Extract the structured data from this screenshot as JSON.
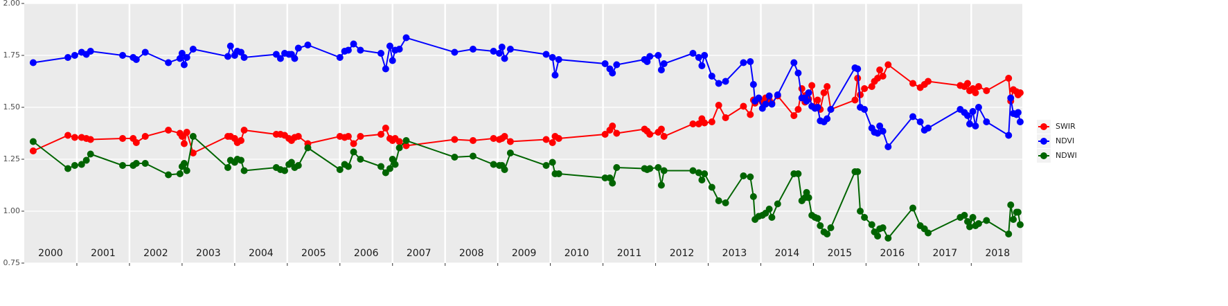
{
  "chart_data": {
    "type": "line",
    "xlim": [
      2000,
      2018.97
    ],
    "ylim": [
      0.75,
      2.0
    ],
    "yticks": [
      {
        "value": 0.75,
        "label": "0.75"
      },
      {
        "value": 1.0,
        "label": "1.00"
      },
      {
        "value": 1.25,
        "label": "1.25"
      },
      {
        "value": 1.5,
        "label": "1.50"
      },
      {
        "value": 1.75,
        "label": "1.75"
      },
      {
        "value": 2.0,
        "label": "2.00"
      }
    ],
    "x_gridlines": [
      2001,
      2002,
      2003,
      2004,
      2005,
      2006,
      2007,
      2008,
      2009,
      2010,
      2011,
      2012,
      2013,
      2014,
      2015,
      2016,
      2017,
      2018
    ],
    "year_labels": [
      {
        "value": 2000.5,
        "label": "2000"
      },
      {
        "value": 2001.5,
        "label": "2001"
      },
      {
        "value": 2002.5,
        "label": "2002"
      },
      {
        "value": 2003.5,
        "label": "2003"
      },
      {
        "value": 2004.5,
        "label": "2004"
      },
      {
        "value": 2005.5,
        "label": "2005"
      },
      {
        "value": 2006.5,
        "label": "2006"
      },
      {
        "value": 2007.5,
        "label": "2007"
      },
      {
        "value": 2008.5,
        "label": "2008"
      },
      {
        "value": 2009.5,
        "label": "2009"
      },
      {
        "value": 2010.5,
        "label": "2010"
      },
      {
        "value": 2011.5,
        "label": "2011"
      },
      {
        "value": 2012.5,
        "label": "2012"
      },
      {
        "value": 2013.5,
        "label": "2013"
      },
      {
        "value": 2014.5,
        "label": "2014"
      },
      {
        "value": 2015.5,
        "label": "2015"
      },
      {
        "value": 2016.5,
        "label": "2016"
      },
      {
        "value": 2017.5,
        "label": "2017"
      },
      {
        "value": 2018.5,
        "label": "2018"
      }
    ],
    "grid": true,
    "legend": "right",
    "x": [
      2000.17,
      2000.83,
      2000.96,
      2001.09,
      2001.18,
      2001.26,
      2001.87,
      2002.07,
      2002.13,
      2002.3,
      2002.74,
      2002.96,
      2003.0,
      2003.04,
      2003.09,
      2003.21,
      2003.87,
      2003.92,
      2004.0,
      2004.05,
      2004.12,
      2004.18,
      2004.79,
      2004.87,
      2004.95,
      2005.03,
      2005.08,
      2005.14,
      2005.21,
      2005.39,
      2006.0,
      2006.09,
      2006.16,
      2006.26,
      2006.39,
      2006.78,
      2006.87,
      2006.95,
      2007.0,
      2007.05,
      2007.13,
      2007.26,
      2008.18,
      2008.53,
      2008.92,
      2009.03,
      2009.08,
      2009.13,
      2009.24,
      2009.92,
      2010.04,
      2010.09,
      2010.16,
      2011.04,
      2011.13,
      2011.18,
      2011.26,
      2011.79,
      2011.84,
      2011.89,
      2012.05,
      2012.11,
      2012.16,
      2012.71,
      2012.82,
      2012.88,
      2012.93,
      2013.07,
      2013.2,
      2013.33,
      2013.67,
      2013.8,
      2013.86,
      2013.89,
      2013.96,
      2014.03,
      2014.09,
      2014.16,
      2014.21,
      2014.32,
      2014.63,
      2014.71,
      2014.78,
      2014.84,
      2014.87,
      2014.91,
      2014.97,
      2015.03,
      2015.08,
      2015.13,
      2015.2,
      2015.26,
      2015.33,
      2015.79,
      2015.84,
      2015.89,
      2015.97,
      2016.11,
      2016.16,
      2016.22,
      2016.26,
      2016.32,
      2016.42,
      2016.89,
      2017.03,
      2017.11,
      2017.18,
      2017.79,
      2017.87,
      2017.93,
      2017.97,
      2018.03,
      2018.08,
      2018.14,
      2018.29,
      2018.71,
      2018.75,
      2018.8,
      2018.86,
      2018.89,
      2018.93
    ],
    "series": [
      {
        "name": "SWIR",
        "color": "#ff0000",
        "values": [
          1.29,
          1.365,
          1.355,
          1.355,
          1.35,
          1.345,
          1.35,
          1.35,
          1.33,
          1.36,
          1.39,
          1.375,
          1.36,
          1.325,
          1.38,
          1.28,
          1.36,
          1.36,
          1.35,
          1.33,
          1.34,
          1.39,
          1.37,
          1.37,
          1.365,
          1.35,
          1.34,
          1.355,
          1.36,
          1.325,
          1.36,
          1.355,
          1.36,
          1.325,
          1.36,
          1.37,
          1.4,
          1.35,
          1.34,
          1.35,
          1.335,
          1.315,
          1.345,
          1.34,
          1.35,
          1.345,
          1.35,
          1.36,
          1.335,
          1.345,
          1.33,
          1.36,
          1.35,
          1.37,
          1.39,
          1.41,
          1.375,
          1.395,
          1.385,
          1.37,
          1.38,
          1.395,
          1.36,
          1.42,
          1.42,
          1.445,
          1.425,
          1.43,
          1.51,
          1.45,
          1.505,
          1.465,
          1.535,
          1.52,
          1.54,
          1.525,
          1.545,
          1.535,
          1.52,
          1.555,
          1.46,
          1.49,
          1.59,
          1.525,
          1.56,
          1.54,
          1.605,
          1.5,
          1.535,
          1.49,
          1.57,
          1.6,
          1.49,
          1.535,
          1.64,
          1.56,
          1.59,
          1.6,
          1.625,
          1.64,
          1.68,
          1.65,
          1.705,
          1.615,
          1.595,
          1.61,
          1.625,
          1.605,
          1.6,
          1.615,
          1.58,
          1.59,
          1.57,
          1.6,
          1.58,
          1.64,
          1.53,
          1.585,
          1.575,
          1.56,
          1.57
        ]
      },
      {
        "name": "NDVI",
        "color": "#0000ff",
        "values": [
          1.715,
          1.74,
          1.75,
          1.765,
          1.755,
          1.77,
          1.75,
          1.74,
          1.73,
          1.765,
          1.715,
          1.735,
          1.76,
          1.705,
          1.74,
          1.78,
          1.745,
          1.795,
          1.75,
          1.77,
          1.765,
          1.74,
          1.755,
          1.735,
          1.76,
          1.755,
          1.755,
          1.735,
          1.785,
          1.8,
          1.74,
          1.77,
          1.775,
          1.805,
          1.775,
          1.76,
          1.685,
          1.795,
          1.725,
          1.775,
          1.78,
          1.835,
          1.765,
          1.78,
          1.77,
          1.76,
          1.79,
          1.735,
          1.78,
          1.755,
          1.74,
          1.655,
          1.73,
          1.71,
          1.685,
          1.665,
          1.705,
          1.73,
          1.72,
          1.745,
          1.75,
          1.68,
          1.71,
          1.76,
          1.74,
          1.7,
          1.75,
          1.65,
          1.615,
          1.625,
          1.715,
          1.72,
          1.61,
          1.53,
          1.545,
          1.495,
          1.515,
          1.555,
          1.515,
          1.56,
          1.715,
          1.665,
          1.545,
          1.545,
          1.53,
          1.57,
          1.505,
          1.495,
          1.5,
          1.435,
          1.43,
          1.445,
          1.49,
          1.69,
          1.685,
          1.5,
          1.49,
          1.4,
          1.38,
          1.375,
          1.41,
          1.385,
          1.31,
          1.455,
          1.43,
          1.39,
          1.4,
          1.49,
          1.475,
          1.46,
          1.42,
          1.48,
          1.41,
          1.5,
          1.43,
          1.365,
          1.545,
          1.47,
          1.465,
          1.475,
          1.43
        ]
      },
      {
        "name": "NDWI",
        "color": "#006400",
        "values": [
          1.335,
          1.205,
          1.22,
          1.225,
          1.245,
          1.275,
          1.22,
          1.22,
          1.23,
          1.23,
          1.175,
          1.18,
          1.215,
          1.23,
          1.195,
          1.36,
          1.21,
          1.245,
          1.235,
          1.25,
          1.245,
          1.195,
          1.21,
          1.2,
          1.195,
          1.225,
          1.235,
          1.21,
          1.22,
          1.305,
          1.2,
          1.225,
          1.215,
          1.285,
          1.25,
          1.215,
          1.185,
          1.205,
          1.25,
          1.225,
          1.305,
          1.34,
          1.26,
          1.265,
          1.225,
          1.22,
          1.22,
          1.2,
          1.28,
          1.22,
          1.235,
          1.18,
          1.18,
          1.16,
          1.16,
          1.135,
          1.21,
          1.205,
          1.2,
          1.205,
          1.21,
          1.125,
          1.195,
          1.195,
          1.185,
          1.15,
          1.18,
          1.115,
          1.05,
          1.04,
          1.17,
          1.165,
          1.07,
          0.96,
          0.975,
          0.98,
          0.99,
          1.01,
          0.97,
          1.035,
          1.18,
          1.18,
          1.05,
          1.065,
          1.09,
          1.065,
          0.98,
          0.97,
          0.965,
          0.93,
          0.9,
          0.89,
          0.92,
          1.19,
          1.19,
          1.0,
          0.97,
          0.935,
          0.9,
          0.88,
          0.915,
          0.92,
          0.87,
          1.015,
          0.93,
          0.915,
          0.895,
          0.97,
          0.98,
          0.95,
          0.925,
          0.97,
          0.93,
          0.94,
          0.955,
          0.89,
          1.03,
          0.96,
          0.995,
          0.995,
          0.935
        ]
      }
    ]
  }
}
